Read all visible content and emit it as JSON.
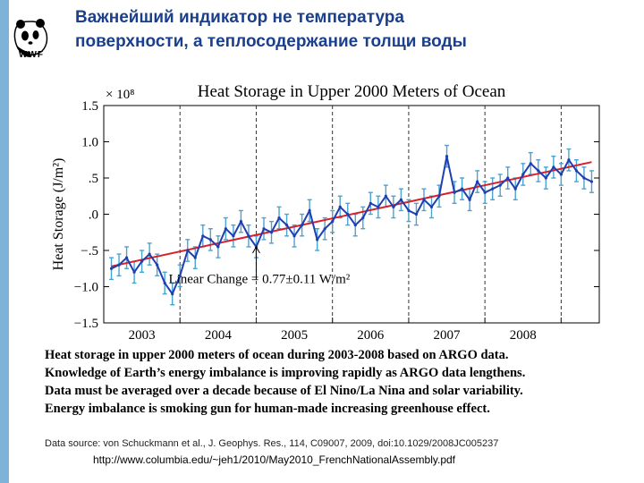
{
  "slide": {
    "logo_text": "WWF",
    "title_line1": "Важнейший индикатор не температура",
    "title_line2": "поверхности, а теплосодержание толщи воды",
    "caption_lines": [
      "Heat storage in upper 2000 meters of ocean during 2003-2008 based on ARGO data.",
      "Knowledge of Earth’s energy imbalance is improving rapidly as ARGO data lengthens.",
      "Data must be averaged over a decade because of El Nino/La Nina and solar variability.",
      "Energy imbalance is smoking gun for human-made increasing greenhouse effect."
    ],
    "source": "Data source: von Schuckmann et al., J. Geophys. Res., 114, C09007, 2009, doi:10.1029/2008JC005237",
    "url": "http://www.columbia.edu/~jeh1/2010/May2010_FrenchNationalAssembly.pdf"
  },
  "colors": {
    "series": "#1f3fb0",
    "errorbars": "#4aa3d0",
    "trend": "#d8202a",
    "title": "#1a3f8c"
  },
  "chart_data": {
    "type": "line",
    "title": "Heat Storage in Upper 2000 Meters of Ocean",
    "ylabel": "Heat Storage (J/m²)",
    "y_multiplier": "× 10⁸",
    "xlabel": "",
    "xlim": [
      2002.5,
      2009.0
    ],
    "ylim": [
      -1.5,
      1.5
    ],
    "yticks": [
      -1.5,
      -1.0,
      -0.5,
      0.0,
      0.5,
      1.0,
      1.5
    ],
    "ytick_labels": [
      "−1.5",
      "−1.0",
      "−.5",
      ".0",
      ".5",
      "1.0",
      "1.5"
    ],
    "xtick_labels": [
      "2003",
      "2004",
      "2005",
      "2006",
      "2007",
      "2008"
    ],
    "year_boundaries": [
      2003.5,
      2004.5,
      2005.5,
      2006.5,
      2007.5,
      2008.5
    ],
    "annotation": "Linear Change = 0.77±0.11 W/m²",
    "trend": {
      "x": [
        2002.6,
        2008.9
      ],
      "y": [
        -0.72,
        0.72
      ]
    },
    "series": [
      {
        "name": "Heat storage",
        "x": [
          2002.6,
          2002.7,
          2002.8,
          2002.9,
          2003.0,
          2003.1,
          2003.2,
          2003.3,
          2003.4,
          2003.5,
          2003.6,
          2003.7,
          2003.8,
          2003.9,
          2004.0,
          2004.1,
          2004.2,
          2004.3,
          2004.4,
          2004.5,
          2004.6,
          2004.7,
          2004.8,
          2004.9,
          2005.0,
          2005.1,
          2005.2,
          2005.3,
          2005.4,
          2005.5,
          2005.6,
          2005.7,
          2005.8,
          2005.9,
          2006.0,
          2006.1,
          2006.2,
          2006.3,
          2006.4,
          2006.5,
          2006.6,
          2006.7,
          2006.8,
          2006.9,
          2007.0,
          2007.1,
          2007.2,
          2007.3,
          2007.4,
          2007.5,
          2007.6,
          2007.7,
          2007.8,
          2007.9,
          2008.0,
          2008.1,
          2008.2,
          2008.3,
          2008.4,
          2008.5,
          2008.6,
          2008.7,
          2008.8,
          2008.9
        ],
        "y": [
          -0.75,
          -0.7,
          -0.6,
          -0.8,
          -0.65,
          -0.55,
          -0.7,
          -0.95,
          -1.1,
          -0.85,
          -0.5,
          -0.6,
          -0.3,
          -0.35,
          -0.45,
          -0.2,
          -0.3,
          -0.1,
          -0.3,
          -0.45,
          -0.2,
          -0.25,
          -0.05,
          -0.15,
          -0.3,
          -0.15,
          0.05,
          -0.35,
          -0.2,
          -0.1,
          0.1,
          0.0,
          -0.15,
          -0.05,
          0.15,
          0.1,
          0.25,
          0.1,
          0.2,
          0.05,
          0.0,
          0.2,
          0.1,
          0.25,
          0.8,
          0.3,
          0.35,
          0.2,
          0.45,
          0.3,
          0.35,
          0.4,
          0.5,
          0.35,
          0.55,
          0.7,
          0.6,
          0.5,
          0.65,
          0.55,
          0.75,
          0.6,
          0.5,
          0.45
        ],
        "error": [
          0.15,
          0.15,
          0.15,
          0.15,
          0.15,
          0.15,
          0.15,
          0.15,
          0.15,
          0.15,
          0.15,
          0.15,
          0.15,
          0.15,
          0.15,
          0.15,
          0.15,
          0.15,
          0.15,
          0.15,
          0.15,
          0.15,
          0.15,
          0.15,
          0.15,
          0.15,
          0.15,
          0.15,
          0.15,
          0.15,
          0.15,
          0.15,
          0.15,
          0.15,
          0.15,
          0.15,
          0.15,
          0.15,
          0.15,
          0.15,
          0.15,
          0.15,
          0.15,
          0.15,
          0.15,
          0.15,
          0.15,
          0.15,
          0.15,
          0.15,
          0.15,
          0.15,
          0.15,
          0.15,
          0.15,
          0.15,
          0.15,
          0.15,
          0.15,
          0.15,
          0.15,
          0.15,
          0.15,
          0.15
        ]
      }
    ]
  }
}
